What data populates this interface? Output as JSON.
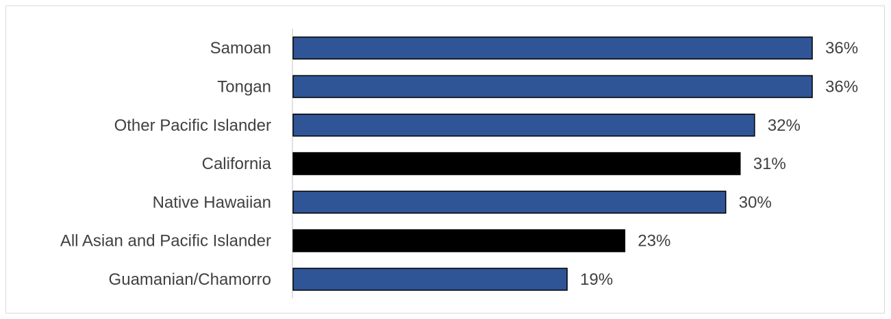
{
  "chart_data": {
    "type": "bar",
    "orientation": "horizontal",
    "categories": [
      "Samoan",
      "Tongan",
      "Other Pacific Islander",
      "California",
      "Native Hawaiian",
      "All Asian and Pacific Islander",
      "Guamanian/Chamorro"
    ],
    "values": [
      36,
      36,
      32,
      31,
      30,
      23,
      19
    ],
    "value_labels": [
      "36%",
      "36%",
      "32%",
      "31%",
      "30%",
      "23%",
      "19%"
    ],
    "bar_colors": [
      "#2f5597",
      "#2f5597",
      "#2f5597",
      "#000000",
      "#2f5597",
      "#000000",
      "#2f5597"
    ],
    "xlim": [
      0,
      36
    ],
    "title": "",
    "xlabel": "",
    "ylabel": "",
    "grid": false,
    "legend": "none"
  }
}
